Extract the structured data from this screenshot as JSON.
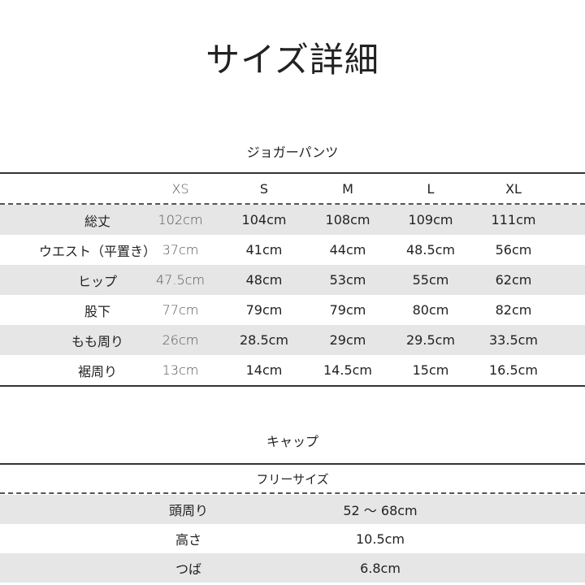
{
  "title": "サイズ詳細",
  "pants": {
    "heading": "ジョガーパンツ",
    "sizes": [
      "XS",
      "S",
      "M",
      "L",
      "XL"
    ],
    "rows": [
      {
        "label": "総丈",
        "values": [
          "102cm",
          "104cm",
          "108cm",
          "109cm",
          "111cm"
        ]
      },
      {
        "label": "ウエスト（平置き）",
        "values": [
          "37cm",
          "41cm",
          "44cm",
          "48.5cm",
          "56cm"
        ]
      },
      {
        "label": "ヒップ",
        "values": [
          "47.5cm",
          "48cm",
          "53cm",
          "55cm",
          "62cm"
        ]
      },
      {
        "label": "股下",
        "values": [
          "77cm",
          "79cm",
          "79cm",
          "80cm",
          "82cm"
        ]
      },
      {
        "label": "もも周り",
        "values": [
          "26cm",
          "28.5cm",
          "29cm",
          "29.5cm",
          "33.5cm"
        ]
      },
      {
        "label": "裾周り",
        "values": [
          "13cm",
          "14cm",
          "14.5cm",
          "15cm",
          "16.5cm"
        ]
      }
    ]
  },
  "cap": {
    "heading": "キャップ",
    "size": "フリーサイズ",
    "rows": [
      {
        "label": "頭周り",
        "value": "52 ～ 68cm"
      },
      {
        "label": "高さ",
        "value": "10.5cm"
      },
      {
        "label": "つば",
        "value": "6.8cm"
      }
    ]
  }
}
